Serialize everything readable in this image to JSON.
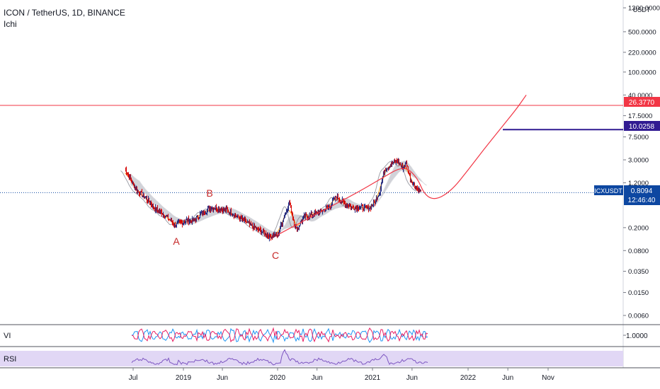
{
  "header": {
    "title": "ICON / TetherUS, 1D, BINANCE",
    "indicator": "Ichi"
  },
  "price_axis": {
    "unit": "USDT",
    "tick_labels": [
      "1300.0000",
      "500.0000",
      "220.0000",
      "100.0000",
      "40.0000",
      "17.5000",
      "7.5000",
      "3.0000",
      "1.2000",
      "0.2000",
      "0.0800",
      "0.0350",
      "0.0150",
      "0.0060"
    ],
    "level_red": "26.3770",
    "level_purple": "10.0258",
    "symbol_tag": "ICXUSDT",
    "last_price": "0.8094",
    "countdown": "12:46:40"
  },
  "time_axis": {
    "labels": [
      "Jul",
      "2019",
      "Jun",
      "2020",
      "Jun",
      "2021",
      "Jun",
      "2022",
      "Jun",
      "Nov"
    ]
  },
  "wave_labels": [
    "A",
    "B",
    "C"
  ],
  "vi_panel": {
    "label": "VI",
    "tick": "1.0000"
  },
  "rsi_panel": {
    "label": "RSI"
  },
  "colors": {
    "red_line": "#f23645",
    "purple_line": "#311b92",
    "price_tag": "#0d47a1",
    "candle_up": "#1a237e",
    "candle_down": "#d50000",
    "vi_plus": "#2196f3",
    "vi_minus": "#e91e63",
    "rsi_line": "#7e57c2",
    "rsi_band": "#e1d7f5",
    "wave_label": "#c62828"
  },
  "chart_data": {
    "type": "line",
    "title": "ICON / TetherUS, 1D, BINANCE",
    "y_scale": "log",
    "ylim": [
      0.004,
      1300
    ],
    "x_range": [
      "2018-05-15",
      "2022-12-31"
    ],
    "series": [
      {
        "type": "candlestick_close",
        "points": [
          {
            "x": "2018-06-01",
            "y": 2.2
          },
          {
            "x": "2018-06-20",
            "y": 1.4
          },
          {
            "x": "2018-07-10",
            "y": 0.95
          },
          {
            "x": "2018-08-01",
            "y": 0.75
          },
          {
            "x": "2018-08-25",
            "y": 0.6
          },
          {
            "x": "2018-09-20",
            "y": 0.42
          },
          {
            "x": "2018-10-15",
            "y": 0.36
          },
          {
            "x": "2018-11-10",
            "y": 0.28
          },
          {
            "x": "2018-12-01",
            "y": 0.22
          },
          {
            "x": "2018-12-20",
            "y": 0.24
          },
          {
            "x": "2019-01-15",
            "y": 0.27
          },
          {
            "x": "2019-02-10",
            "y": 0.26
          },
          {
            "x": "2019-03-10",
            "y": 0.35
          },
          {
            "x": "2019-04-10",
            "y": 0.42
          },
          {
            "x": "2019-05-01",
            "y": 0.45
          },
          {
            "x": "2019-06-01",
            "y": 0.42
          },
          {
            "x": "2019-07-01",
            "y": 0.38
          },
          {
            "x": "2019-08-01",
            "y": 0.3
          },
          {
            "x": "2019-09-01",
            "y": 0.25
          },
          {
            "x": "2019-10-01",
            "y": 0.2
          },
          {
            "x": "2019-11-01",
            "y": 0.17
          },
          {
            "x": "2019-12-01",
            "y": 0.14
          },
          {
            "x": "2020-01-01",
            "y": 0.15
          },
          {
            "x": "2020-01-25",
            "y": 0.3
          },
          {
            "x": "2020-02-15",
            "y": 0.55
          },
          {
            "x": "2020-03-13",
            "y": 0.18
          },
          {
            "x": "2020-04-10",
            "y": 0.3
          },
          {
            "x": "2020-05-15",
            "y": 0.34
          },
          {
            "x": "2020-06-15",
            "y": 0.38
          },
          {
            "x": "2020-07-15",
            "y": 0.45
          },
          {
            "x": "2020-08-15",
            "y": 0.7
          },
          {
            "x": "2020-09-10",
            "y": 0.55
          },
          {
            "x": "2020-10-15",
            "y": 0.45
          },
          {
            "x": "2020-11-15",
            "y": 0.45
          },
          {
            "x": "2020-12-15",
            "y": 0.42
          },
          {
            "x": "2021-01-10",
            "y": 0.55
          },
          {
            "x": "2021-01-30",
            "y": 0.9
          },
          {
            "x": "2021-02-15",
            "y": 2.0
          },
          {
            "x": "2021-03-10",
            "y": 2.5
          },
          {
            "x": "2021-04-05",
            "y": 2.9
          },
          {
            "x": "2021-04-25",
            "y": 2.2
          },
          {
            "x": "2021-05-10",
            "y": 2.7
          },
          {
            "x": "2021-05-25",
            "y": 1.4
          },
          {
            "x": "2021-06-10",
            "y": 1.1
          },
          {
            "x": "2021-06-25",
            "y": 0.9
          },
          {
            "x": "2021-07-05",
            "y": 0.81
          }
        ]
      },
      {
        "name": "",
        "type": "projection_curve",
        "points": [
          {
            "x": "2020-01-01",
            "y": 0.15
          },
          {
            "x": "2020-06-01",
            "y": 0.35
          },
          {
            "x": "2020-11-01",
            "y": 0.8
          },
          {
            "x": "2021-02-01",
            "y": 1.4
          },
          {
            "x": "2021-05-01",
            "y": 2.4
          },
          {
            "x": "2021-06-20",
            "y": 1.5
          },
          {
            "x": "2021-07-20",
            "y": 0.72
          },
          {
            "x": "2021-09-01",
            "y": 0.6
          },
          {
            "x": "2021-11-01",
            "y": 0.9
          },
          {
            "x": "2022-01-01",
            "y": 2.0
          },
          {
            "x": "2022-03-01",
            "y": 4.5
          },
          {
            "x": "2022-05-01",
            "y": 10.0
          },
          {
            "x": "2022-07-01",
            "y": 22.0
          },
          {
            "x": "2022-08-10",
            "y": 40.0
          }
        ]
      }
    ],
    "horizontal_levels": [
      26.377,
      10.0258
    ],
    "current_price": 0.8094,
    "grid": false
  }
}
